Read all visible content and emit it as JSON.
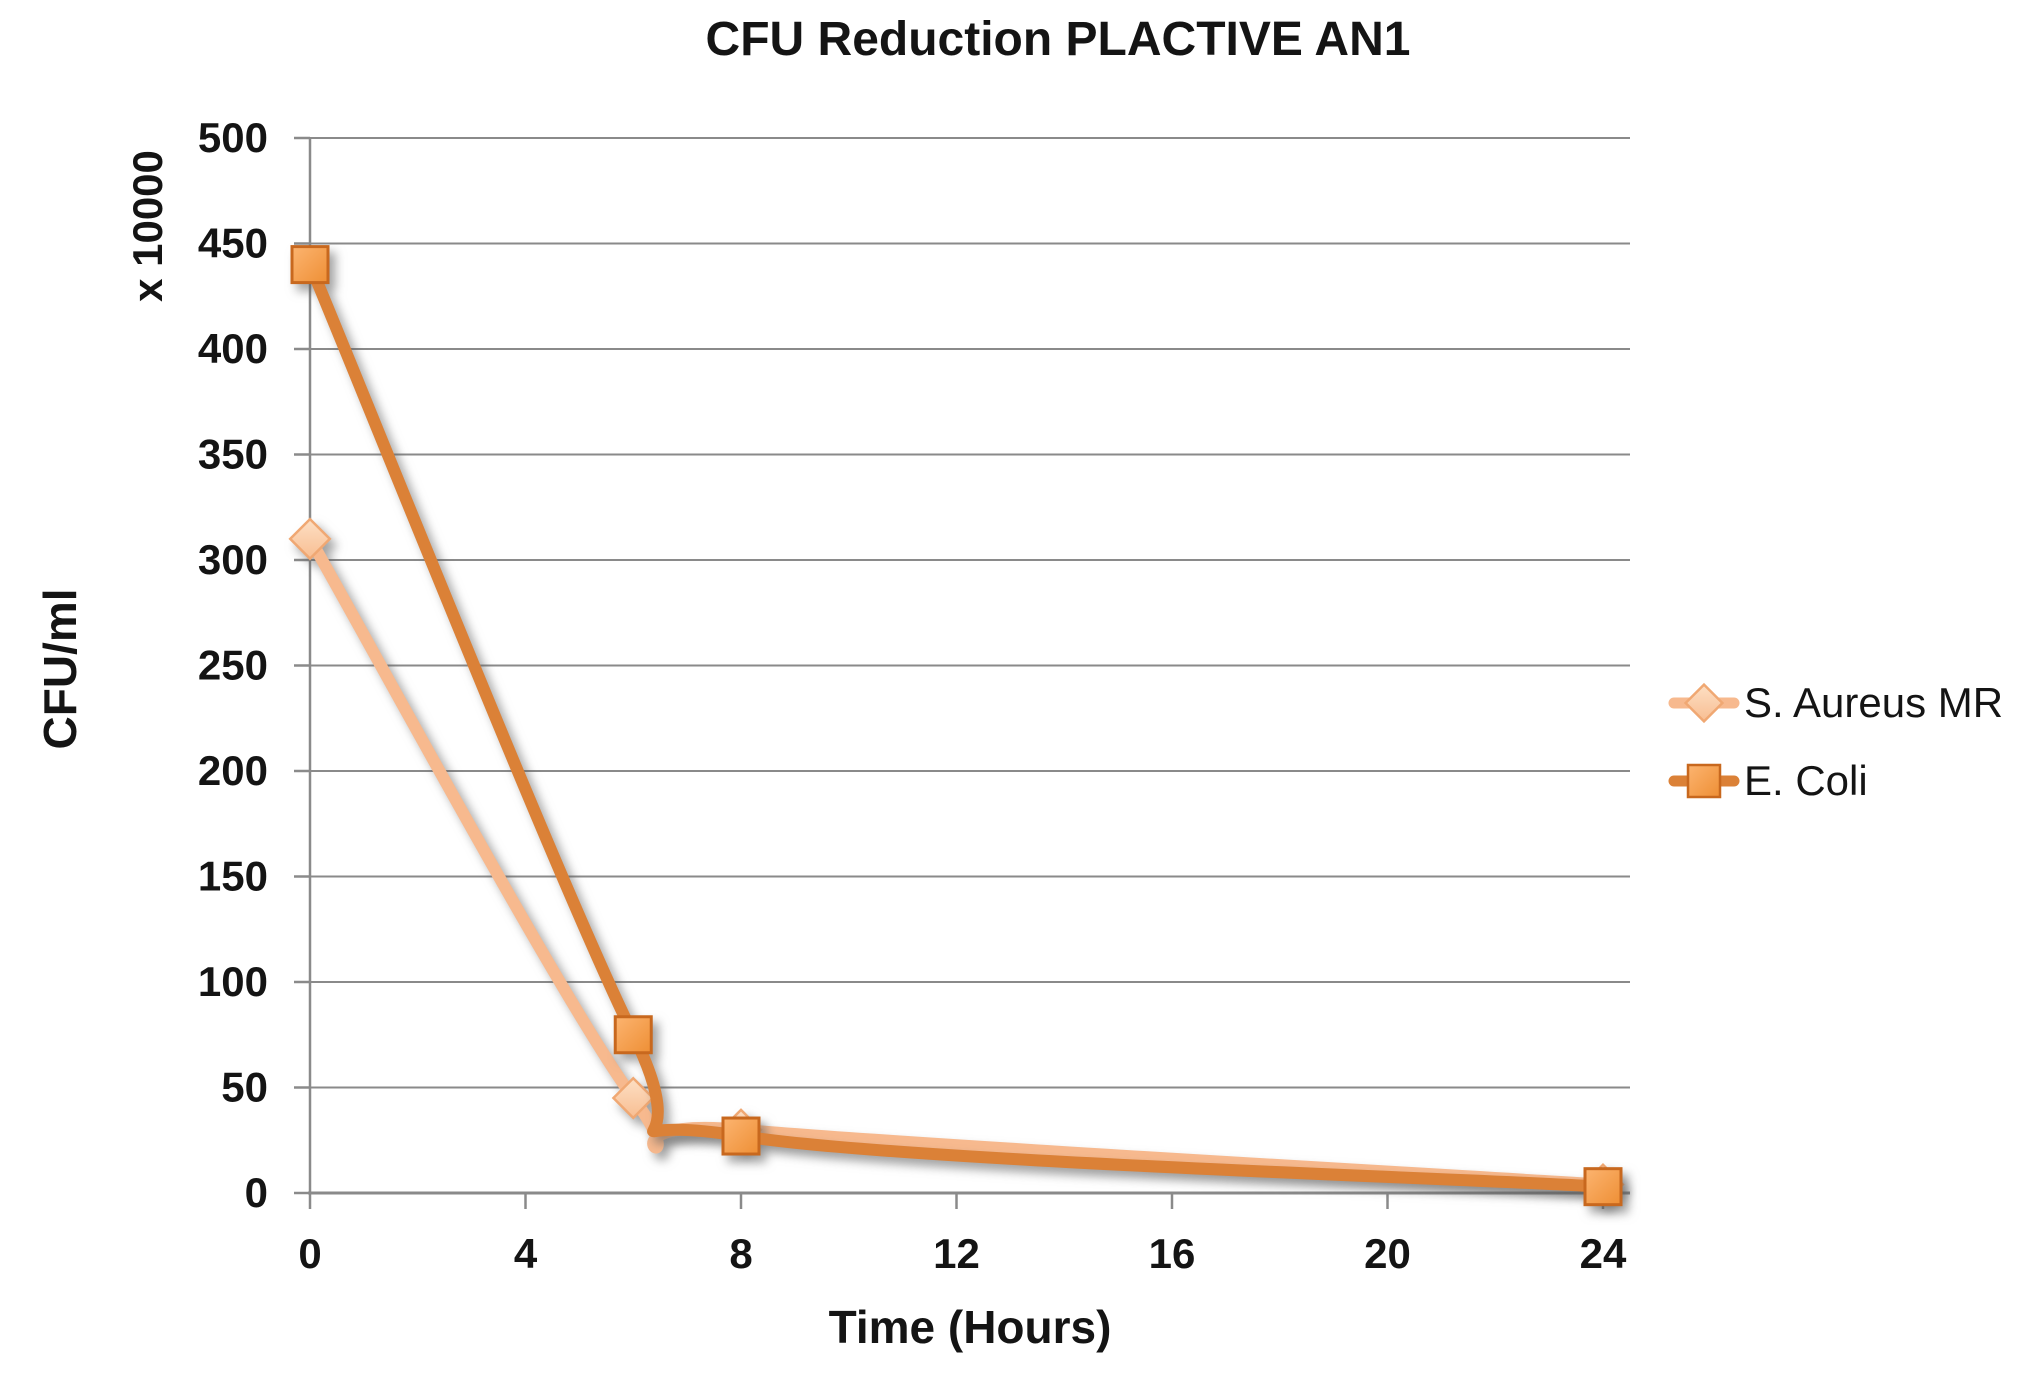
{
  "chart_data": {
    "type": "line",
    "title": "CFU Reduction PLACTIVE AN1",
    "xlabel": "Time (Hours)",
    "ylabel": "CFU/ml",
    "y_multiplier_label": "x 10000",
    "x_ticks": [
      0,
      4,
      8,
      12,
      16,
      20,
      24
    ],
    "y_ticks": [
      0,
      50,
      100,
      150,
      200,
      250,
      300,
      350,
      400,
      450,
      500
    ],
    "xlim": [
      0,
      24.5
    ],
    "ylim": [
      0,
      500
    ],
    "grid": "horizontal-only",
    "line_style": "smoothed",
    "legend_position": "right",
    "series": [
      {
        "name": "S. Aureus MR",
        "marker": "diamond",
        "x": [
          0,
          6,
          8,
          24
        ],
        "values": [
          310,
          45,
          30,
          4
        ],
        "line_color": "#F7B98E",
        "marker_fill_light": "#FDDfC4",
        "marker_fill_dark": "#F8BE92",
        "marker_stroke": "#F0A873"
      },
      {
        "name": "E. Coli",
        "marker": "square",
        "x": [
          0,
          6,
          8,
          24
        ],
        "values": [
          440,
          75,
          27,
          3
        ],
        "line_color": "#DB8137",
        "marker_fill_light": "#FCB470",
        "marker_fill_dark": "#EE8F35",
        "marker_stroke": "#C8681E"
      }
    ],
    "colors": {
      "gridline": "#8A8A8A",
      "axis": "#8A8A8A",
      "text": "#141414",
      "background": "#FFFFFF"
    }
  }
}
